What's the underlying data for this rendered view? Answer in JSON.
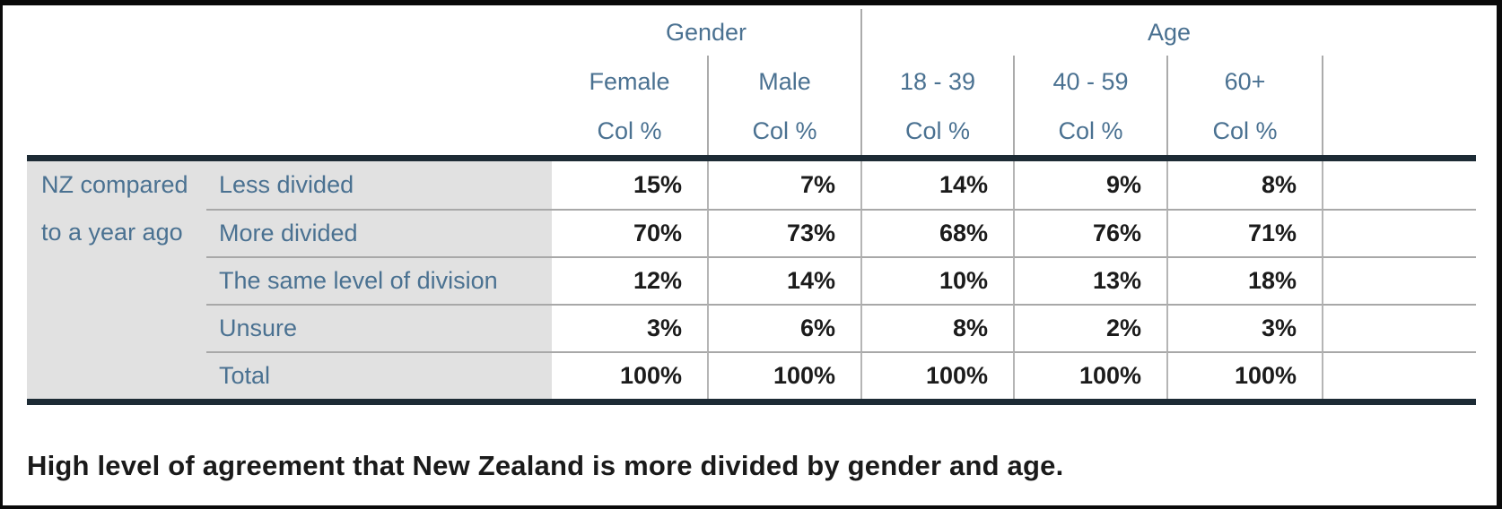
{
  "table": {
    "row_group_label_line1": "NZ compared",
    "row_group_label_line2": "to a year ago",
    "col_groups": [
      {
        "label": "Gender"
      },
      {
        "label": "Age"
      }
    ],
    "columns": [
      "Female",
      "Male",
      "18 - 39",
      "40 - 59",
      "60+"
    ],
    "col_subheader": "Col %",
    "rows": [
      {
        "label": "Less divided",
        "values": [
          "15%",
          "7%",
          "14%",
          "9%",
          "8%"
        ]
      },
      {
        "label": "More divided",
        "values": [
          "70%",
          "73%",
          "68%",
          "76%",
          "71%"
        ]
      },
      {
        "label": "The same level of division",
        "values": [
          "12%",
          "14%",
          "10%",
          "13%",
          "18%"
        ]
      },
      {
        "label": "Unsure",
        "values": [
          "3%",
          "6%",
          "8%",
          "2%",
          "3%"
        ]
      },
      {
        "label": "Total",
        "values": [
          "100%",
          "100%",
          "100%",
          "100%",
          "100%"
        ]
      }
    ]
  },
  "caption": "High level of agreement that New Zealand is more divided by gender and age.",
  "colors": {
    "header_text": "#4a7191",
    "value_text": "#1b1b1b",
    "thick_rule": "#1d2b35",
    "grid_line": "#ababab",
    "label_background": "#e1e1e1",
    "frame_border": "#0a0a0a"
  },
  "chart_data": {
    "type": "table",
    "title": "NZ compared to a year ago",
    "unit": "Col %",
    "column_groups": [
      {
        "group": "Gender",
        "columns": [
          "Female",
          "Male"
        ]
      },
      {
        "group": "Age",
        "columns": [
          "18 - 39",
          "40 - 59",
          "60+"
        ]
      }
    ],
    "row_categories": [
      "Less divided",
      "More divided",
      "The same level of division",
      "Unsure",
      "Total"
    ],
    "series": [
      {
        "name": "Female",
        "values": [
          15,
          70,
          12,
          3,
          100
        ]
      },
      {
        "name": "Male",
        "values": [
          7,
          73,
          14,
          6,
          100
        ]
      },
      {
        "name": "18 - 39",
        "values": [
          14,
          68,
          10,
          8,
          100
        ]
      },
      {
        "name": "40 - 59",
        "values": [
          9,
          76,
          13,
          2,
          100
        ]
      },
      {
        "name": "60+",
        "values": [
          8,
          71,
          18,
          3,
          100
        ]
      }
    ],
    "annotation": "High level of agreement that New Zealand is more divided by gender and age."
  }
}
